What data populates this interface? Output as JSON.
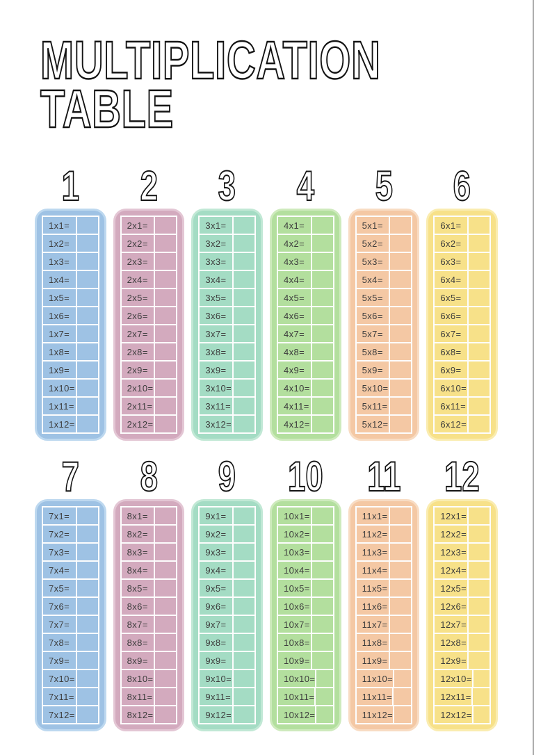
{
  "page": {
    "title_line1": "MULTIPLICATION",
    "title_line2": "TABLE",
    "background": "#ffffff",
    "text_color": "#3d3d3d",
    "outline_color": "#141414",
    "gridline_color": "#fdfdfd",
    "edge_line_color": "#a9a9a9"
  },
  "cards": [
    {
      "number": "1",
      "color": "#9ec2e4",
      "rim": "#bdd8ef",
      "rows": [
        "1x1=",
        "1x2=",
        "1x3=",
        "1x4=",
        "1x5=",
        "1x6=",
        "1x7=",
        "1x8=",
        "1x9=",
        "1x10=",
        "1x11=",
        "1x12="
      ]
    },
    {
      "number": "2",
      "color": "#d3aabe",
      "rim": "#e3c6d4",
      "rows": [
        "2x1=",
        "2x2=",
        "2x3=",
        "2x4=",
        "2x5=",
        "2x6=",
        "2x7=",
        "2x8=",
        "2x9=",
        "2x10=",
        "2x11=",
        "2x12="
      ]
    },
    {
      "number": "3",
      "color": "#a4dcc4",
      "rim": "#c1e8d5",
      "rows": [
        "3x1=",
        "3x2=",
        "3x3=",
        "3x4=",
        "3x5=",
        "3x6=",
        "3x7=",
        "3x8=",
        "3x9=",
        "3x10=",
        "3x11=",
        "3x12="
      ]
    },
    {
      "number": "4",
      "color": "#b3df9e",
      "rim": "#ceeabd",
      "rows": [
        "4x1=",
        "4x2=",
        "4x3=",
        "4x4=",
        "4x5=",
        "4x6=",
        "4x7=",
        "4x8=",
        "4x9=",
        "4x10=",
        "4x11=",
        "4x12="
      ]
    },
    {
      "number": "5",
      "color": "#f4c8a4",
      "rim": "#f8dcc3",
      "rows": [
        "5x1=",
        "5x2=",
        "5x3=",
        "5x4=",
        "5x5=",
        "5x6=",
        "5x7=",
        "5x8=",
        "5x9=",
        "5x10=",
        "5x11=",
        "5x12="
      ]
    },
    {
      "number": "6",
      "color": "#f7e189",
      "rim": "#faecb0",
      "rows": [
        "6x1=",
        "6x2=",
        "6x3=",
        "6x4=",
        "6x5=",
        "6x6=",
        "6x7=",
        "6x8=",
        "6x9=",
        "6x10=",
        "6x11=",
        "6x12="
      ]
    },
    {
      "number": "7",
      "color": "#9ec2e4",
      "rim": "#bdd8ef",
      "rows": [
        "7x1=",
        "7x2=",
        "7x3=",
        "7x4=",
        "7x5=",
        "7x6=",
        "7x7=",
        "7x8=",
        "7x9=",
        "7x10=",
        "7x11=",
        "7x12="
      ]
    },
    {
      "number": "8",
      "color": "#d3aabe",
      "rim": "#e3c6d4",
      "rows": [
        "8x1=",
        "8x2=",
        "8x3=",
        "8x4=",
        "8x5=",
        "8x6=",
        "8x7=",
        "8x8=",
        "8x9=",
        "8x10=",
        "8x11=",
        "8x12="
      ]
    },
    {
      "number": "9",
      "color": "#a4dcc4",
      "rim": "#c1e8d5",
      "rows": [
        "9x1=",
        "9x2=",
        "9x3=",
        "9x4=",
        "9x5=",
        "9x6=",
        "9x7=",
        "9x8=",
        "9x9=",
        "9x10=",
        "9x11=",
        "9x12="
      ]
    },
    {
      "number": "10",
      "color": "#b3df9e",
      "rim": "#ceeabd",
      "rows": [
        "10x1=",
        "10x2=",
        "10x3=",
        "10x4=",
        "10x5=",
        "10x6=",
        "10x7=",
        "10x8=",
        "10x9=",
        "10x10=",
        "10x11=",
        "10x12="
      ]
    },
    {
      "number": "11",
      "color": "#f4c8a4",
      "rim": "#f8dcc3",
      "rows": [
        "11x1=",
        "11x2=",
        "11x3=",
        "11x4=",
        "11x5=",
        "11x6=",
        "11x7=",
        "11x8=",
        "11x9=",
        "11x10=",
        "11x11=",
        "11x12="
      ]
    },
    {
      "number": "12",
      "color": "#f7e189",
      "rim": "#faecb0",
      "rows": [
        "12x1=",
        "12x2=",
        "12x3=",
        "12x4=",
        "12x5=",
        "12x6=",
        "12x7=",
        "12x8=",
        "12x9=",
        "12x10=",
        "12x11=",
        "12x12="
      ]
    }
  ]
}
